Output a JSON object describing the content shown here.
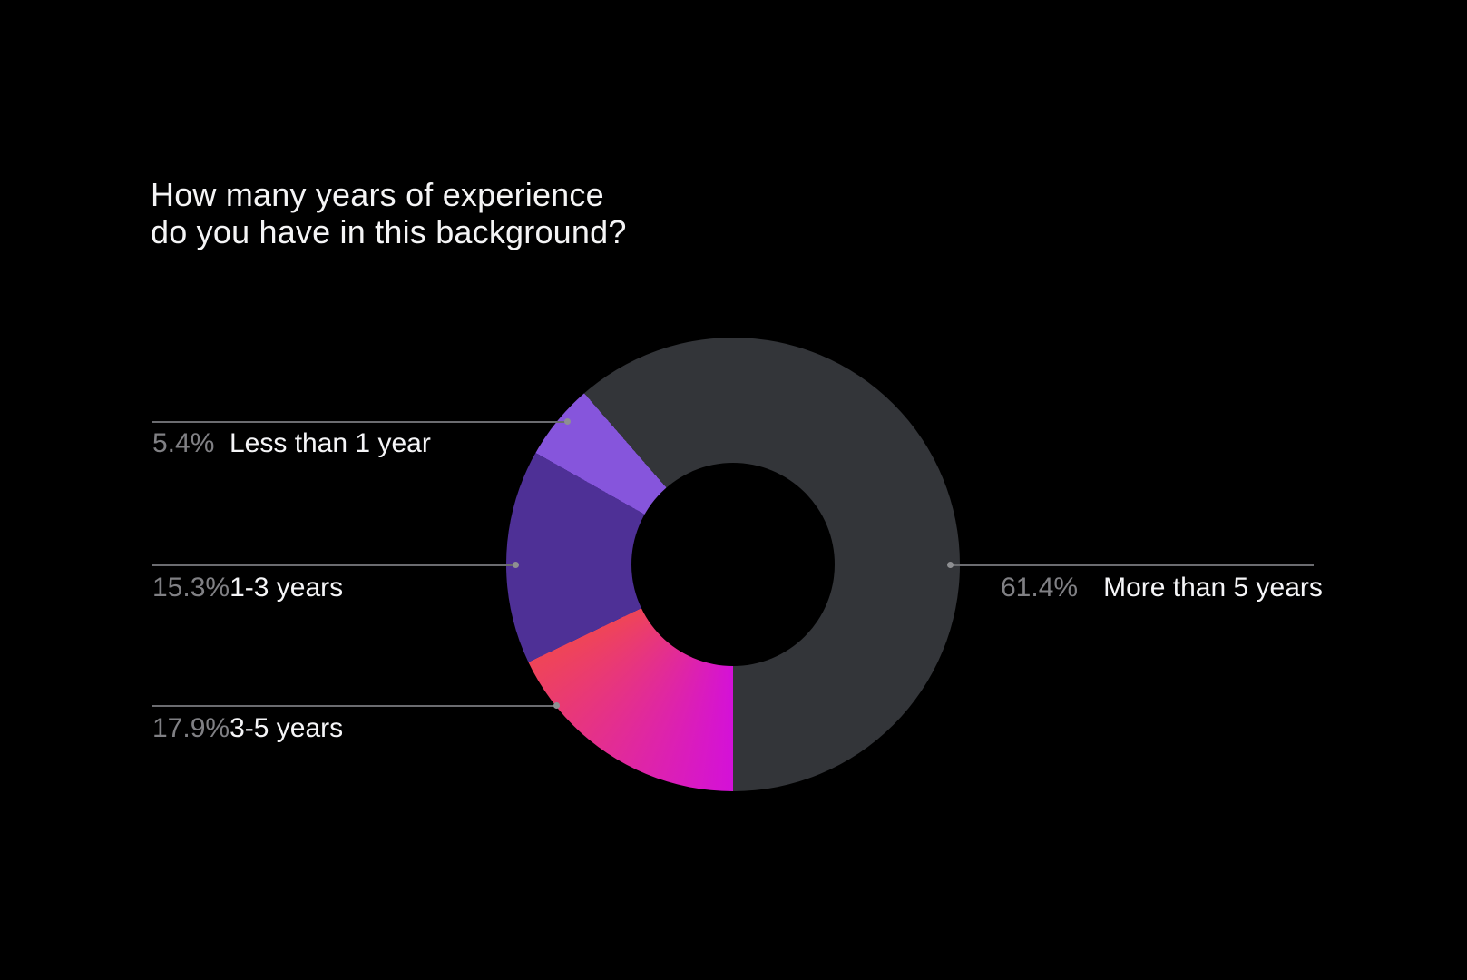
{
  "page": {
    "background": "#000000"
  },
  "title": {
    "line1": "How many years of experience",
    "line2": "do you have in this background?"
  },
  "callouts": [
    {
      "pct": "5.4%",
      "label": "Less than 1 year"
    },
    {
      "pct": "15.3%",
      "label": "1-3 years"
    },
    {
      "pct": "17.9%",
      "label": "3-5 years"
    },
    {
      "pct": "61.4%",
      "label": "More than 5 years"
    }
  ],
  "chart_data": {
    "type": "pie",
    "subtype": "donut",
    "title": "How many years of experience do you have in this background?",
    "categories": [
      "Less than 1 year",
      "1-3 years",
      "3-5 years",
      "More than 5 years"
    ],
    "values": [
      5.4,
      15.3,
      17.9,
      61.4
    ],
    "unit": "%",
    "legend_position": "callout-labels-left-and-right",
    "donut": {
      "start_angle_deg": 180,
      "direction": "clockwise",
      "hole_ratio": 0.45,
      "slices": [
        {
          "label": "3-5 years",
          "value": 17.9,
          "color_start": "#D411D8",
          "color_end": "#EF4557"
        },
        {
          "label": "1-3 years",
          "value": 15.3,
          "color": "#4E3096"
        },
        {
          "label": "Less than 1 year",
          "value": 5.4,
          "color": "#8655DC"
        },
        {
          "label": "More than 5 years",
          "value": 61.4,
          "color": "#333539"
        }
      ]
    },
    "colors": {
      "less_than_1_year": "#8655DC",
      "one_to_three_years": "#4E3096",
      "three_to_five_years_gradient": [
        "#EF4557",
        "#D411D8"
      ],
      "more_than_5_years": "#333539",
      "percent_text": "#808084",
      "label_text": "#F5F5F7",
      "leader_line": "#6B6C70",
      "title_text": "#F4F4F5",
      "background": "#000000"
    }
  }
}
